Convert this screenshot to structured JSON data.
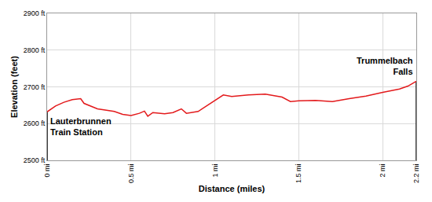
{
  "chart_data": {
    "type": "line",
    "x_label": "Distance (miles)",
    "y_label": "Elevation (feet)",
    "x": [
      0,
      0.05,
      0.1,
      0.15,
      0.2,
      0.22,
      0.3,
      0.4,
      0.45,
      0.5,
      0.55,
      0.58,
      0.6,
      0.63,
      0.7,
      0.75,
      0.8,
      0.83,
      0.9,
      0.95,
      1.0,
      1.05,
      1.1,
      1.2,
      1.3,
      1.4,
      1.45,
      1.5,
      1.6,
      1.7,
      1.8,
      1.9,
      2.0,
      2.05,
      2.1,
      2.15,
      2.2
    ],
    "values": [
      2632,
      2648,
      2658,
      2665,
      2668,
      2655,
      2640,
      2633,
      2625,
      2622,
      2628,
      2634,
      2620,
      2630,
      2627,
      2630,
      2640,
      2628,
      2633,
      2648,
      2662,
      2678,
      2674,
      2678,
      2680,
      2672,
      2660,
      2662,
      2663,
      2660,
      2668,
      2675,
      2685,
      2690,
      2694,
      2702,
      2715
    ],
    "color": "#e31a1c",
    "xlim": [
      0,
      2.2
    ],
    "ylim": [
      2500,
      2900
    ],
    "xticks": [
      {
        "value": 0,
        "label": "0 mi"
      },
      {
        "value": 0.5,
        "label": "0.5 mi"
      },
      {
        "value": 1,
        "label": "1 mi"
      },
      {
        "value": 1.5,
        "label": "1.5 mi"
      },
      {
        "value": 2,
        "label": "2 mi"
      },
      {
        "value": 2.2,
        "label": "2.2 mi"
      }
    ],
    "yticks": [
      {
        "value": 2500,
        "label": "2500 ft"
      },
      {
        "value": 2600,
        "label": "2600 ft"
      },
      {
        "value": 2700,
        "label": "2700 ft"
      },
      {
        "value": 2800,
        "label": "2800 ft"
      },
      {
        "value": 2900,
        "label": "2900 ft"
      }
    ],
    "annotations": [
      {
        "text": "Lauterbrunnen Train Station",
        "x": 0,
        "y": 2632
      },
      {
        "text": "Trummelbach Falls",
        "x": 2.2,
        "y": 2715
      }
    ],
    "grid": true
  }
}
